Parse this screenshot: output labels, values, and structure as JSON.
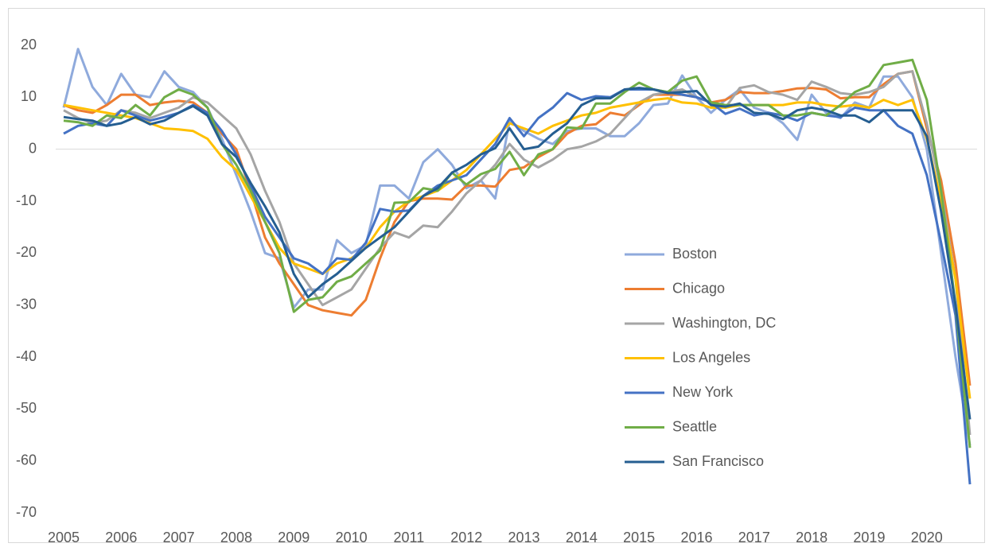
{
  "chart_data": {
    "type": "line",
    "categories": [
      "2005",
      null,
      null,
      null,
      "2006",
      null,
      null,
      null,
      "2007",
      null,
      null,
      null,
      "2008",
      null,
      null,
      null,
      "2009",
      null,
      null,
      null,
      "2010",
      null,
      null,
      null,
      "2011",
      null,
      null,
      null,
      "2012",
      null,
      null,
      null,
      "2013",
      null,
      null,
      null,
      "2014",
      null,
      null,
      null,
      "2015",
      null,
      null,
      null,
      "2016",
      null,
      null,
      null,
      "2017",
      null,
      null,
      null,
      "2018",
      null,
      null,
      null,
      "2019",
      null,
      null,
      null,
      "2020",
      null,
      null,
      null
    ],
    "ylim": [
      -70,
      20
    ],
    "yticks": [
      -70,
      -60,
      -50,
      -40,
      -30,
      -20,
      -10,
      0,
      10,
      20
    ],
    "grid": false,
    "legend": "right",
    "series": [
      {
        "name": "Boston",
        "color": "#8FAADC",
        "values": [
          8,
          19.3,
          12,
          8.5,
          14.5,
          10.5,
          10,
          15,
          12,
          11,
          8,
          2,
          -5,
          -12,
          -20,
          -21,
          -30.5,
          -27,
          -27,
          -17.5,
          -20,
          -18.5,
          -7,
          -7,
          -9.5,
          -2.5,
          0,
          -3,
          -7.5,
          -6,
          -9.5,
          5.5,
          3.5,
          2,
          1,
          3.5,
          4,
          4,
          2.5,
          2.5,
          5,
          8.5,
          8.8,
          14.2,
          10,
          7,
          9.5,
          11.5,
          8,
          7,
          5,
          1.8,
          10.5,
          7,
          6,
          9,
          8,
          14,
          14,
          10,
          0,
          -20,
          -40,
          -57
        ]
      },
      {
        "name": "Chicago",
        "color": "#ED7D31",
        "values": [
          8.5,
          7.5,
          7,
          8.5,
          10.5,
          10.5,
          8.5,
          9,
          9.3,
          9,
          7,
          3,
          0,
          -8,
          -17,
          -22,
          -26,
          -30,
          -31,
          -31.5,
          -32,
          -29,
          -21,
          -14,
          -10,
          -9.5,
          -9.5,
          -9.7,
          -7,
          -7,
          -7.2,
          -4,
          -3.5,
          -1.5,
          0,
          3,
          4.5,
          4.8,
          7,
          6.5,
          8.5,
          10.5,
          10.5,
          10.5,
          10,
          9,
          9.5,
          11,
          10.8,
          10.8,
          11.2,
          11.7,
          11.8,
          11.5,
          9.8,
          10,
          10,
          12.5,
          14.5,
          15,
          4,
          -6,
          -22,
          -45.5
        ]
      },
      {
        "name": "Washington, DC",
        "color": "#A5A5A5",
        "values": [
          7.5,
          6,
          5,
          5.5,
          7.5,
          7,
          6,
          7,
          8,
          10,
          9,
          6.5,
          4,
          -1,
          -8,
          -14,
          -22,
          -26,
          -30,
          -28.5,
          -27,
          -23,
          -19,
          -16,
          -17,
          -14.7,
          -15,
          -12,
          -8.5,
          -6,
          -3,
          1,
          -2,
          -3.5,
          -2,
          0,
          0.5,
          1.5,
          3,
          6,
          9,
          10.5,
          11,
          11.5,
          10,
          9,
          8,
          11.8,
          12.3,
          11,
          10.5,
          9.5,
          13,
          12,
          10.8,
          10.5,
          11,
          12,
          14.5,
          15,
          5,
          -8,
          -25,
          -55
        ]
      },
      {
        "name": "Los Angeles",
        "color": "#FFC000",
        "values": [
          8.5,
          8,
          7.5,
          7,
          6.5,
          6,
          5,
          4,
          3.8,
          3.5,
          2,
          -1.5,
          -4,
          -9,
          -14,
          -19,
          -22,
          -23,
          -24,
          -22,
          -21,
          -19,
          -15,
          -12,
          -10,
          -9,
          -8,
          -6,
          -4,
          -1,
          2,
          5,
          4,
          3,
          4.5,
          5.5,
          6.5,
          7,
          8,
          8.5,
          9,
          9.5,
          9.8,
          9,
          8.8,
          8,
          8,
          8.5,
          8.5,
          8.5,
          8.5,
          9,
          9,
          8.5,
          8.2,
          8.5,
          8,
          9.5,
          8.5,
          9.5,
          2,
          -10,
          -25,
          -48
        ]
      },
      {
        "name": "New York",
        "color": "#4472C4",
        "values": [
          3,
          4.5,
          5,
          4.5,
          7.5,
          6.5,
          5.5,
          6.2,
          7,
          8.5,
          7,
          3.5,
          -1,
          -7,
          -13,
          -17,
          -21,
          -22,
          -24,
          -21,
          -21.3,
          -18,
          -11.5,
          -12,
          -11.8,
          -9,
          -7,
          -6,
          -5,
          -2,
          1,
          6,
          2.5,
          6,
          8,
          10.8,
          9.5,
          10.2,
          10,
          11.5,
          11.5,
          11.5,
          11,
          10.5,
          10,
          9,
          6.8,
          7.8,
          6.5,
          7,
          6.5,
          5.5,
          7,
          6.5,
          6.2,
          8,
          7.5,
          7.5,
          4.5,
          3,
          -5,
          -18,
          -32,
          -64.5
        ]
      },
      {
        "name": "Seattle",
        "color": "#70AD47",
        "values": [
          5.5,
          5.2,
          4.5,
          6.5,
          6,
          8.5,
          6.5,
          10,
          11.5,
          10.5,
          8,
          1,
          -3,
          -8,
          -14,
          -20,
          -31.3,
          -29,
          -28.5,
          -25.5,
          -24.5,
          -22,
          -19.5,
          -10.3,
          -10.2,
          -7.5,
          -8,
          -4.5,
          -6.8,
          -4.8,
          -3.8,
          -0.5,
          -5,
          -1,
          0,
          4.2,
          4,
          8.8,
          8.8,
          11,
          12.8,
          11.5,
          11,
          13.2,
          14,
          9,
          8.5,
          8.5,
          8.5,
          8.5,
          6.5,
          6.5,
          7,
          6.5,
          8.5,
          11,
          12.2,
          16.2,
          16.7,
          17.2,
          9.5,
          -8,
          -30,
          -57.5
        ]
      },
      {
        "name": "San Francisco",
        "color": "#255E91",
        "values": [
          6.2,
          5.8,
          5.5,
          4.5,
          5,
          6.2,
          4.8,
          5.5,
          7,
          8.3,
          6.5,
          1,
          -1.5,
          -6.5,
          -11,
          -16,
          -24,
          -28.5,
          -26,
          -24,
          -21.5,
          -19,
          -17,
          -15,
          -12,
          -9,
          -7.5,
          -4.5,
          -3,
          -1,
          0.2,
          4,
          0,
          0.5,
          3,
          5,
          8.5,
          9.8,
          9.8,
          11.5,
          11.8,
          11.5,
          10.8,
          11,
          11.2,
          8.5,
          8.2,
          8.8,
          7,
          6.8,
          5.8,
          7.5,
          8,
          7.5,
          6.5,
          6.5,
          5.2,
          7.5,
          7.5,
          7.5,
          2.5,
          -12,
          -30,
          -52
        ]
      }
    ]
  }
}
